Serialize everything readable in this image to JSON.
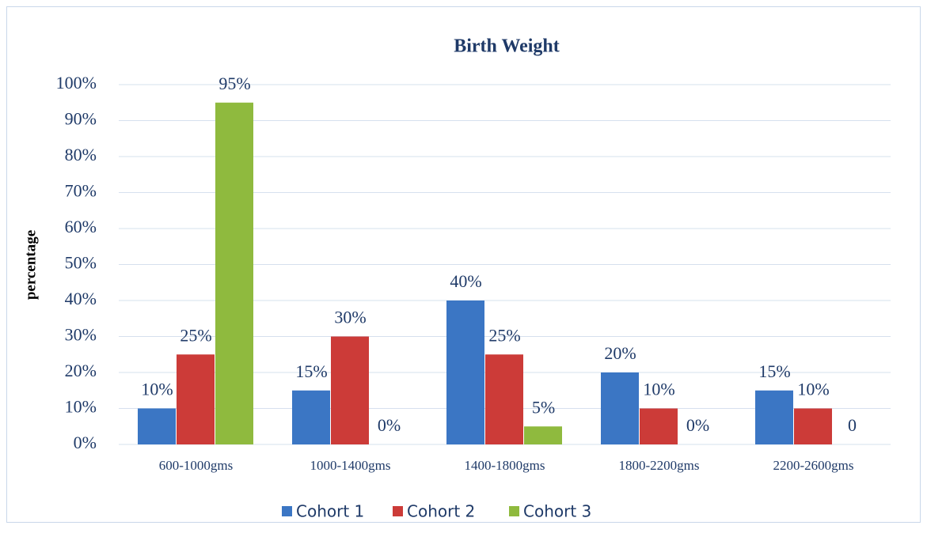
{
  "chart_data": {
    "type": "bar",
    "title": "Birth Weight",
    "y_label": "percentage",
    "categories": [
      "600-1000gms",
      "1000-1400gms",
      "1400-1800gms",
      "1800-2200gms",
      "2200-2600gms"
    ],
    "series": [
      {
        "name": "Cohort 1",
        "color": "#3b76c4",
        "values": [
          10,
          15,
          40,
          20,
          15
        ],
        "value_labels": [
          "10%",
          "15%",
          "40%",
          "20%",
          "15%"
        ]
      },
      {
        "name": "Cohort 2",
        "color": "#cc3b38",
        "values": [
          25,
          30,
          25,
          10,
          10
        ],
        "value_labels": [
          "25%",
          "30%",
          "25%",
          "10%",
          "10%"
        ]
      },
      {
        "name": "Cohort 3",
        "color": "#8fba3e",
        "values": [
          95,
          0,
          5,
          0,
          0
        ],
        "value_labels": [
          "95%",
          "0%",
          "5%",
          "0%",
          "0"
        ]
      }
    ],
    "ylim": [
      0,
      100
    ],
    "yticks": [
      {
        "value": 0,
        "label": "0%"
      },
      {
        "value": 10,
        "label": "10%"
      },
      {
        "value": 20,
        "label": "20%"
      },
      {
        "value": 30,
        "label": "30%"
      },
      {
        "value": 40,
        "label": "40%"
      },
      {
        "value": 50,
        "label": "50%"
      },
      {
        "value": 60,
        "label": "60%"
      },
      {
        "value": 70,
        "label": "70%"
      },
      {
        "value": 80,
        "label": "80%"
      },
      {
        "value": 90,
        "label": "90%"
      },
      {
        "value": 100,
        "label": "100%"
      }
    ],
    "grid": true,
    "legend": "bottom"
  }
}
